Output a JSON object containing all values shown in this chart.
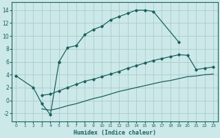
{
  "xlabel": "Humidex (Indice chaleur)",
  "bg_color": "#cce8e8",
  "grid_color": "#aacccc",
  "line_color": "#1a6060",
  "xlim": [
    -0.5,
    23.5
  ],
  "ylim": [
    -3.2,
    15.2
  ],
  "xticks": [
    0,
    1,
    2,
    3,
    4,
    5,
    6,
    7,
    8,
    9,
    10,
    11,
    12,
    13,
    14,
    15,
    16,
    17,
    18,
    19,
    20,
    21,
    22,
    23
  ],
  "yticks": [
    -2,
    0,
    2,
    4,
    6,
    8,
    10,
    12,
    14
  ],
  "curve_main_x": [
    0,
    2,
    3,
    4,
    5,
    6,
    7,
    8,
    9,
    10,
    11,
    12,
    13,
    14,
    15,
    16,
    19
  ],
  "curve_main_y": [
    3.8,
    2.0,
    -0.5,
    -2.2,
    6.0,
    8.2,
    8.5,
    10.2,
    11.0,
    11.5,
    12.5,
    13.0,
    13.5,
    14.0,
    14.0,
    13.8,
    9.0
  ],
  "curve_mid_x": [
    3,
    4,
    5,
    6,
    7,
    8,
    9,
    10,
    11,
    12,
    13,
    14,
    15,
    16,
    17,
    18,
    19,
    20,
    21,
    22,
    23
  ],
  "curve_mid_y": [
    0.8,
    1.0,
    1.5,
    2.0,
    2.5,
    3.0,
    3.3,
    3.7,
    4.1,
    4.5,
    5.0,
    5.4,
    5.8,
    6.2,
    6.5,
    6.8,
    7.1,
    7.0,
    4.8,
    5.0,
    5.2
  ],
  "curve_low_x": [
    3,
    4,
    5,
    6,
    7,
    8,
    9,
    10,
    11,
    12,
    13,
    14,
    15,
    16,
    17,
    18,
    19,
    20,
    21,
    22,
    23
  ],
  "curve_low_y": [
    -1.3,
    -1.5,
    -1.2,
    -0.8,
    -0.5,
    -0.1,
    0.3,
    0.6,
    1.0,
    1.4,
    1.7,
    2.0,
    2.3,
    2.6,
    2.9,
    3.1,
    3.4,
    3.7,
    3.8,
    4.0,
    4.1
  ]
}
